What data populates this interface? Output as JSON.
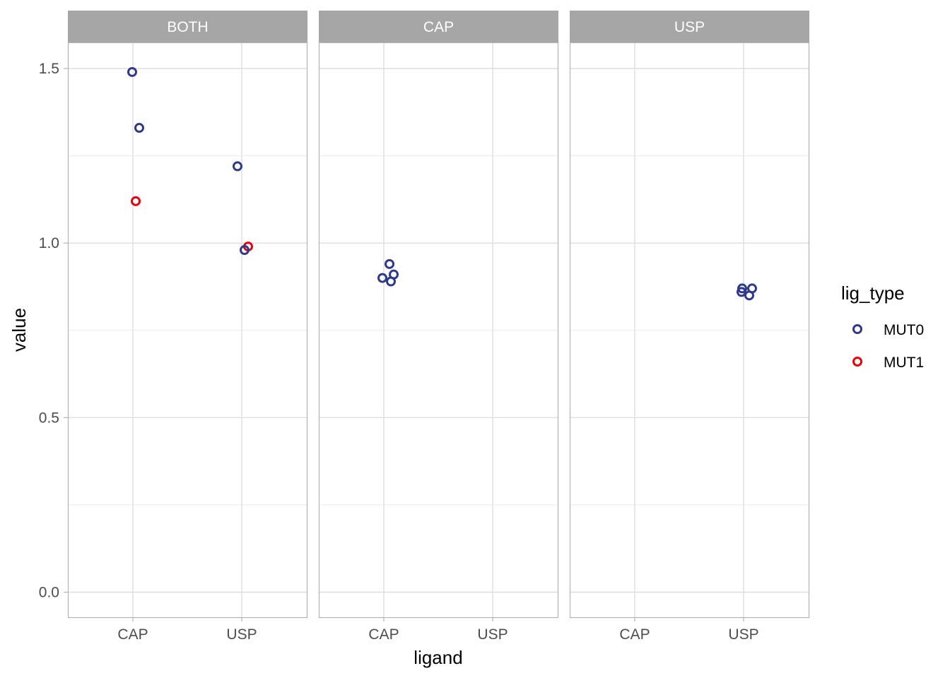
{
  "chart_data": {
    "type": "scatter",
    "xlabel": "ligand",
    "ylabel": "value",
    "x_categories": [
      "CAP",
      "USP"
    ],
    "y_ticks": [
      "0.0",
      "0.5",
      "1.0",
      "1.5"
    ],
    "y_tick_values": [
      0.0,
      0.5,
      1.0,
      1.5
    ],
    "ylim": [
      -0.07,
      1.57
    ],
    "grid": true,
    "legend": {
      "title": "lig_type",
      "position": "right",
      "entries": [
        {
          "label": "MUT0",
          "color": "#2e3a87"
        },
        {
          "label": "MUT1",
          "color": "#e8000b"
        }
      ]
    },
    "panels": [
      {
        "strip": "BOTH",
        "points": [
          {
            "x": "CAP",
            "y": 1.49,
            "group": "MUT0"
          },
          {
            "x": "CAP",
            "y": 1.33,
            "group": "MUT0"
          },
          {
            "x": "CAP",
            "y": 1.12,
            "group": "MUT1"
          },
          {
            "x": "USP",
            "y": 1.22,
            "group": "MUT0"
          },
          {
            "x": "USP",
            "y": 0.99,
            "group": "MUT1"
          },
          {
            "x": "USP",
            "y": 0.98,
            "group": "MUT0"
          }
        ]
      },
      {
        "strip": "CAP",
        "points": [
          {
            "x": "CAP",
            "y": 0.94,
            "group": "MUT0"
          },
          {
            "x": "CAP",
            "y": 0.91,
            "group": "MUT0"
          },
          {
            "x": "CAP",
            "y": 0.9,
            "group": "MUT0"
          },
          {
            "x": "CAP",
            "y": 0.89,
            "group": "MUT0"
          }
        ]
      },
      {
        "strip": "USP",
        "points": [
          {
            "x": "USP",
            "y": 0.87,
            "group": "MUT0"
          },
          {
            "x": "USP",
            "y": 0.87,
            "group": "MUT0"
          },
          {
            "x": "USP",
            "y": 0.86,
            "group": "MUT0"
          },
          {
            "x": "USP",
            "y": 0.85,
            "group": "MUT0"
          }
        ]
      }
    ]
  }
}
